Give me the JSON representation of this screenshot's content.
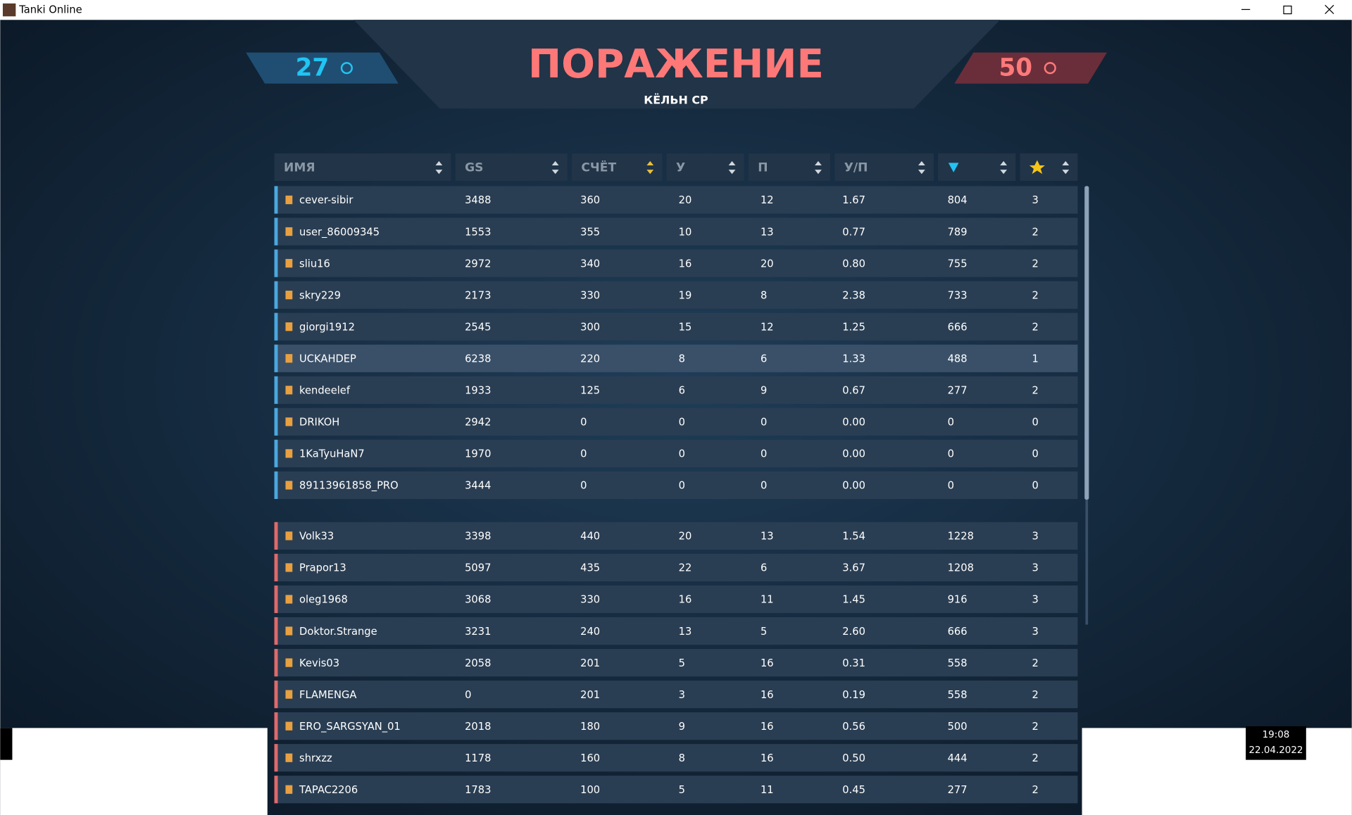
{
  "window": {
    "title": "Tanki Online"
  },
  "header": {
    "blue_score": 27,
    "red_score": 50,
    "result": "ПОРАЖЕНИЕ",
    "map": "КЁЛЬН CP"
  },
  "table": {
    "columns": [
      "ИМЯ",
      "GS",
      "СЧЁТ",
      "У",
      "П",
      "У/П"
    ],
    "blue_team": [
      {
        "name": "cever-sibir",
        "gs": 3488,
        "gs_color": "#3fa0e8",
        "score": 360,
        "kills": 20,
        "deaths": 12,
        "kd": "1.67",
        "crystals": 804,
        "stars": 3
      },
      {
        "name": "user_86009345",
        "gs": 1553,
        "gs_color": "#86d640",
        "score": 355,
        "kills": 10,
        "deaths": 13,
        "kd": "0.77",
        "crystals": 789,
        "stars": 2
      },
      {
        "name": "sliu16",
        "gs": 2972,
        "gs_color": "#86d640",
        "score": 340,
        "kills": 16,
        "deaths": 20,
        "kd": "0.80",
        "crystals": 755,
        "stars": 2
      },
      {
        "name": "skry229",
        "gs": 2173,
        "gs_color": "#86d640",
        "score": 330,
        "kills": 19,
        "deaths": 8,
        "kd": "2.38",
        "crystals": 733,
        "stars": 2
      },
      {
        "name": "giorgi1912",
        "gs": 2545,
        "gs_color": "#86d640",
        "score": 300,
        "kills": 15,
        "deaths": 12,
        "kd": "1.25",
        "crystals": 666,
        "stars": 2
      },
      {
        "name": "UCKAHDEP",
        "gs": 6238,
        "gs_color": "#e8c23a",
        "score": 220,
        "kills": 8,
        "deaths": 6,
        "kd": "1.33",
        "crystals": 488,
        "stars": 1
      },
      {
        "name": "kendeelef",
        "gs": 1933,
        "gs_color": "#a0cc58",
        "score": 125,
        "kills": 6,
        "deaths": 9,
        "kd": "0.67",
        "crystals": 277,
        "stars": 2
      },
      {
        "name": "DRIKOH",
        "gs": 2942,
        "gs_color": "#86d640",
        "score": 0,
        "kills": 0,
        "deaths": 0,
        "kd": "0.00",
        "crystals": 0,
        "stars": 0
      },
      {
        "name": "1KaTyuHaN7",
        "gs": 1970,
        "gs_color": "#a0cc58",
        "score": 0,
        "kills": 0,
        "deaths": 0,
        "kd": "0.00",
        "crystals": 0,
        "stars": 0
      },
      {
        "name": "89113961858_PRO",
        "gs": 3444,
        "gs_color": "#3fa0e8",
        "score": 0,
        "kills": 0,
        "deaths": 0,
        "kd": "0.00",
        "crystals": 0,
        "stars": 0
      }
    ],
    "red_team": [
      {
        "name": "Volk33",
        "gs": 3398,
        "gs_color": "#3fa0e8",
        "score": 440,
        "kills": 20,
        "deaths": 13,
        "kd": "1.54",
        "crystals": 1228,
        "stars": 3
      },
      {
        "name": "Prapor13",
        "gs": 5097,
        "gs_color": "#b45cf0",
        "score": 435,
        "kills": 22,
        "deaths": 6,
        "kd": "3.67",
        "crystals": 1208,
        "stars": 3
      },
      {
        "name": "oleg1968",
        "gs": 3068,
        "gs_color": "#3fa0e8",
        "score": 330,
        "kills": 16,
        "deaths": 11,
        "kd": "1.45",
        "crystals": 916,
        "stars": 3
      },
      {
        "name": "Doktor.Strange",
        "gs": 3231,
        "gs_color": "#3fa0e8",
        "score": 240,
        "kills": 13,
        "deaths": 5,
        "kd": "2.60",
        "crystals": 666,
        "stars": 3
      },
      {
        "name": "Kevis03",
        "gs": 2058,
        "gs_color": "#86d640",
        "score": 201,
        "kills": 5,
        "deaths": 16,
        "kd": "0.31",
        "crystals": 558,
        "stars": 2
      },
      {
        "name": "FLAMENGA",
        "gs": 0,
        "gs_color": "#a0cc58",
        "score": 201,
        "kills": 3,
        "deaths": 16,
        "kd": "0.19",
        "crystals": 558,
        "stars": 2
      },
      {
        "name": "ERO_SARGSYAN_01",
        "gs": 2018,
        "gs_color": "#86d640",
        "score": 180,
        "kills": 9,
        "deaths": 16,
        "kd": "0.56",
        "crystals": 500,
        "stars": 2
      },
      {
        "name": "shrxzz",
        "gs": 1178,
        "gs_color": "#a0cc58",
        "score": 160,
        "kills": 8,
        "deaths": 16,
        "kd": "0.50",
        "crystals": 444,
        "stars": 2
      },
      {
        "name": "TAPAC2206",
        "gs": 1783,
        "gs_color": "#a0cc58",
        "score": 100,
        "kills": 5,
        "deaths": 11,
        "kd": "0.45",
        "crystals": 277,
        "stars": 2
      }
    ]
  },
  "taskbar": {
    "time": "19:08",
    "date": "22.04.2022"
  }
}
